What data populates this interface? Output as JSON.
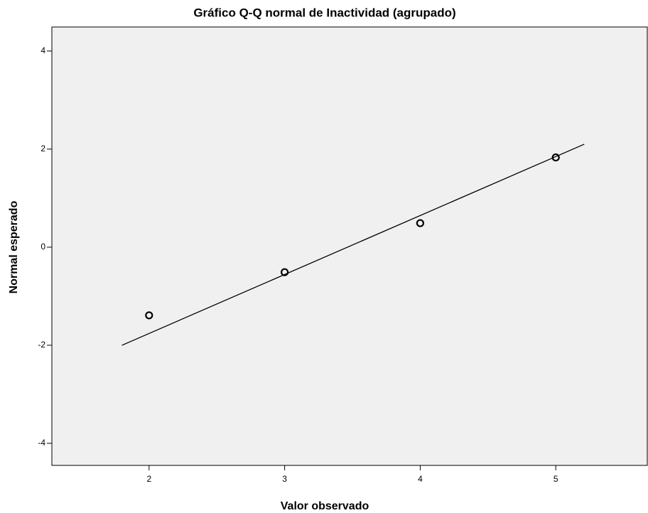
{
  "chart_data": {
    "type": "scatter",
    "title": "Gráfico Q-Q normal de Inactividad (agrupado)",
    "x_label": "Valor observado",
    "y_label": "Normal esperado",
    "x": [
      2,
      3,
      4,
      5
    ],
    "values": [
      -1.39,
      -0.51,
      0.49,
      1.83
    ],
    "color": "#000000",
    "reference_line": {
      "x": [
        1.8,
        5.21
      ],
      "y": [
        -2.0,
        2.1
      ],
      "color": "#000000"
    },
    "xlim": [
      1.283,
      5.675
    ],
    "xticks": [
      2,
      3,
      4,
      5
    ],
    "ylim": [
      -4.45,
      4.49
    ],
    "yticks": [
      -4,
      -2,
      0,
      2,
      4
    ],
    "background": "#f0f0f0"
  }
}
